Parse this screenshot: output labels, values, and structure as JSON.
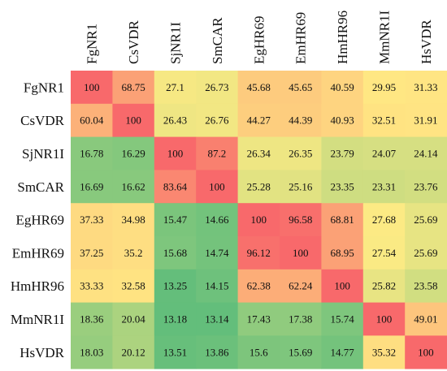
{
  "chart_data": {
    "type": "heatmap",
    "row_labels": [
      "FgNR1",
      "CsVDR",
      "SjNR1I",
      "SmCAR",
      "EgHR69",
      "EmHR69",
      "HmHR96",
      "MmNR1I",
      "HsVDR"
    ],
    "col_labels": [
      "FgNR1",
      "CsVDR",
      "SjNR1I",
      "SmCAR",
      "EgHR69",
      "EmHR69",
      "HmHR96",
      "MmNR1I",
      "HsVDR"
    ],
    "values": [
      [
        100,
        68.75,
        27.1,
        26.73,
        45.68,
        45.65,
        40.59,
        29.95,
        31.33
      ],
      [
        60.04,
        100,
        26.43,
        26.76,
        44.27,
        44.39,
        40.93,
        32.51,
        31.91
      ],
      [
        16.78,
        16.29,
        100,
        87.2,
        26.34,
        26.35,
        23.79,
        24.07,
        24.14
      ],
      [
        16.69,
        16.62,
        83.64,
        100,
        25.28,
        25.16,
        23.35,
        23.31,
        23.76
      ],
      [
        37.33,
        34.98,
        15.47,
        14.66,
        100,
        96.58,
        68.81,
        27.68,
        25.69
      ],
      [
        37.25,
        35.2,
        15.68,
        14.74,
        96.12,
        100,
        68.95,
        27.54,
        25.69
      ],
      [
        33.33,
        32.58,
        13.25,
        14.15,
        62.38,
        62.24,
        100,
        25.82,
        23.58
      ],
      [
        18.36,
        20.04,
        13.18,
        13.14,
        17.43,
        17.38,
        15.74,
        100,
        49.01
      ],
      [
        18.03,
        20.12,
        13.51,
        13.86,
        15.6,
        15.69,
        14.77,
        35.32,
        100
      ]
    ],
    "color_scale": {
      "min": 13.14,
      "mid": 28,
      "max": 100,
      "low_color": "#63be7b",
      "mid_color": "#ffeb84",
      "high_color": "#f8696b"
    },
    "cell_labels_shown": true,
    "legend": "none"
  }
}
